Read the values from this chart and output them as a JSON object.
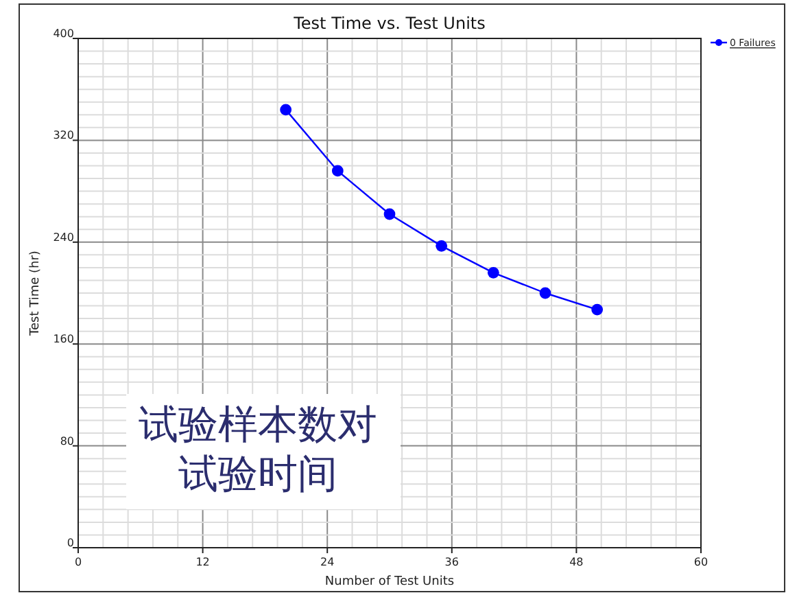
{
  "chart_data": {
    "type": "line",
    "title": "Test Time vs. Test Units",
    "xlabel": "Number of Test Units",
    "ylabel": "Test Time  (hr)",
    "x": [
      20,
      25,
      30,
      35,
      40,
      45,
      50
    ],
    "series": [
      {
        "name": "0 Failures",
        "color": "#0000ff",
        "values": [
          344,
          296,
          262,
          237,
          216,
          200,
          187
        ]
      }
    ],
    "xlim": [
      0,
      60
    ],
    "xticks": [
      0,
      12,
      24,
      36,
      48,
      60
    ],
    "ylim": [
      0,
      400
    ],
    "yticks": [
      0,
      80,
      160,
      240,
      320,
      400
    ],
    "grid": true,
    "legend": "top right",
    "marker": "circle",
    "line_style": "solid",
    "annotations": [
      "试验样本数对",
      "试验时间"
    ]
  }
}
